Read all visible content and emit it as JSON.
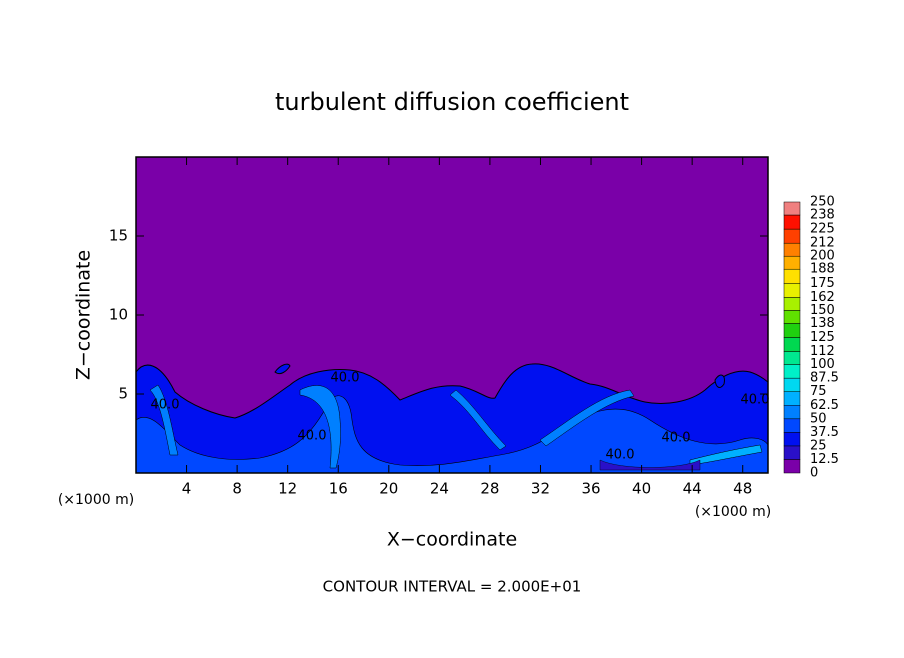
{
  "chart_data": {
    "type": "contour",
    "title": "turbulent diffusion coefficient",
    "x_label": "X−coordinate",
    "y_label": "Z−coordinate",
    "x_unit_left": "(×1000 m)",
    "x_unit_right": "(×1000 m)",
    "footer": "CONTOUR INTERVAL = 2.000E+01",
    "xlim": [
      0,
      50
    ],
    "xticks": [
      4,
      8,
      12,
      16,
      20,
      24,
      28,
      32,
      36,
      40,
      44,
      48
    ],
    "ylim": [
      0,
      20
    ],
    "yticks": [
      5,
      10,
      15
    ],
    "contour_labels": [
      "40.0",
      "40.0",
      "40.0",
      "40.0",
      "40.0",
      "40.0"
    ],
    "colorbar": {
      "levels": [
        0,
        12.5,
        25,
        37.5,
        50,
        62.5,
        75,
        87.5,
        100,
        112,
        125,
        138,
        150,
        162,
        175,
        188,
        200,
        212,
        225,
        238,
        250
      ],
      "colors": [
        "#7a00a8",
        "#2a10c8",
        "#0010f0",
        "#0048ff",
        "#0080ff",
        "#00b0ff",
        "#00d8f0",
        "#00f0c8",
        "#00e890",
        "#00d850",
        "#20d010",
        "#60e000",
        "#a8f000",
        "#e8f000",
        "#ffe000",
        "#ffb000",
        "#ff8000",
        "#ff4000",
        "#ff1000",
        "#f08080"
      ]
    }
  }
}
